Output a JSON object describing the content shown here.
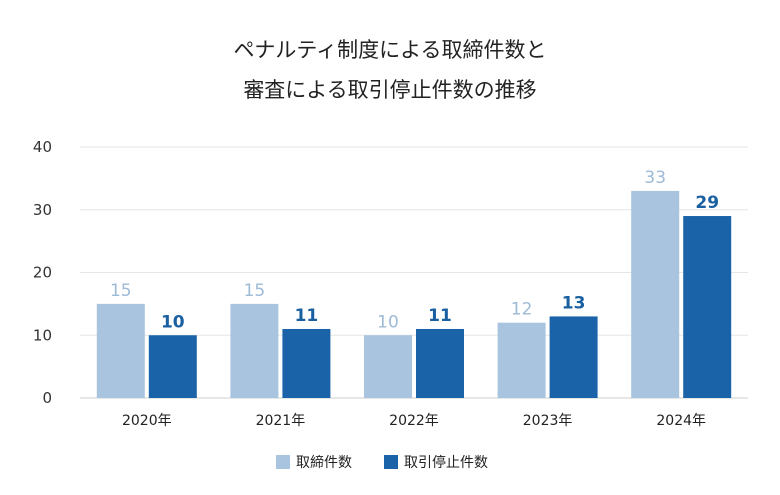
{
  "chart_data": {
    "type": "bar",
    "title_lines": [
      "ペナルティ制度による取締件数と",
      "審査による取引停止件数の推移"
    ],
    "categories": [
      "2020年",
      "2021年",
      "2022年",
      "2023年",
      "2024年"
    ],
    "series": [
      {
        "name": "取締件数",
        "color": "#a8c4de",
        "values": [
          15,
          15,
          10,
          12,
          33
        ]
      },
      {
        "name": "取引停止件数",
        "color": "#1a63a8",
        "values": [
          10,
          11,
          11,
          13,
          29
        ]
      }
    ],
    "yticks": [
      "0",
      "10",
      "20",
      "30",
      "40"
    ],
    "ylim": [
      0,
      40
    ],
    "grid": true,
    "legend_position": "bottom-center"
  }
}
